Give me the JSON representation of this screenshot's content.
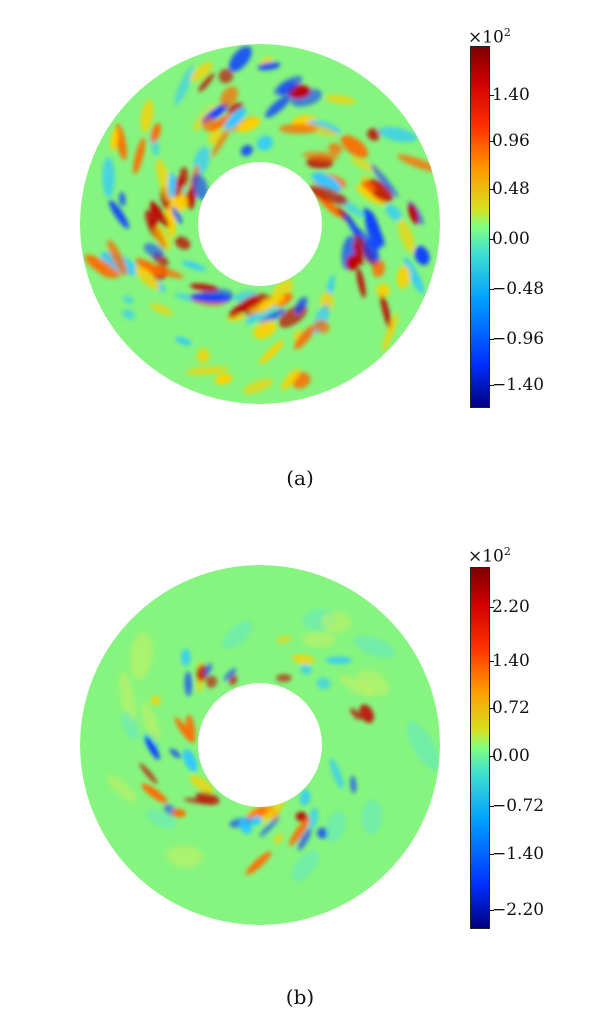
{
  "panel_a": {
    "caption": "(a)",
    "colorbar": {
      "exponent_base": "×10",
      "exponent": "2",
      "ticks": [
        "1.40",
        "0.96",
        "0.48",
        "0.00",
        "−0.48",
        "−0.96",
        "−1.40"
      ]
    }
  },
  "panel_b": {
    "caption": "(b)",
    "colorbar": {
      "exponent_base": "×10",
      "exponent": "2",
      "ticks": [
        "2.20",
        "1.40",
        "0.72",
        "0.00",
        "−0.72",
        "−1.40",
        "−2.20"
      ]
    }
  },
  "colors": {
    "background_field": "#86f57f",
    "positive_strong": "#c00000",
    "positive": "#ff6a00",
    "negative": "#1040ff",
    "negative_light": "#30c8ff"
  }
}
